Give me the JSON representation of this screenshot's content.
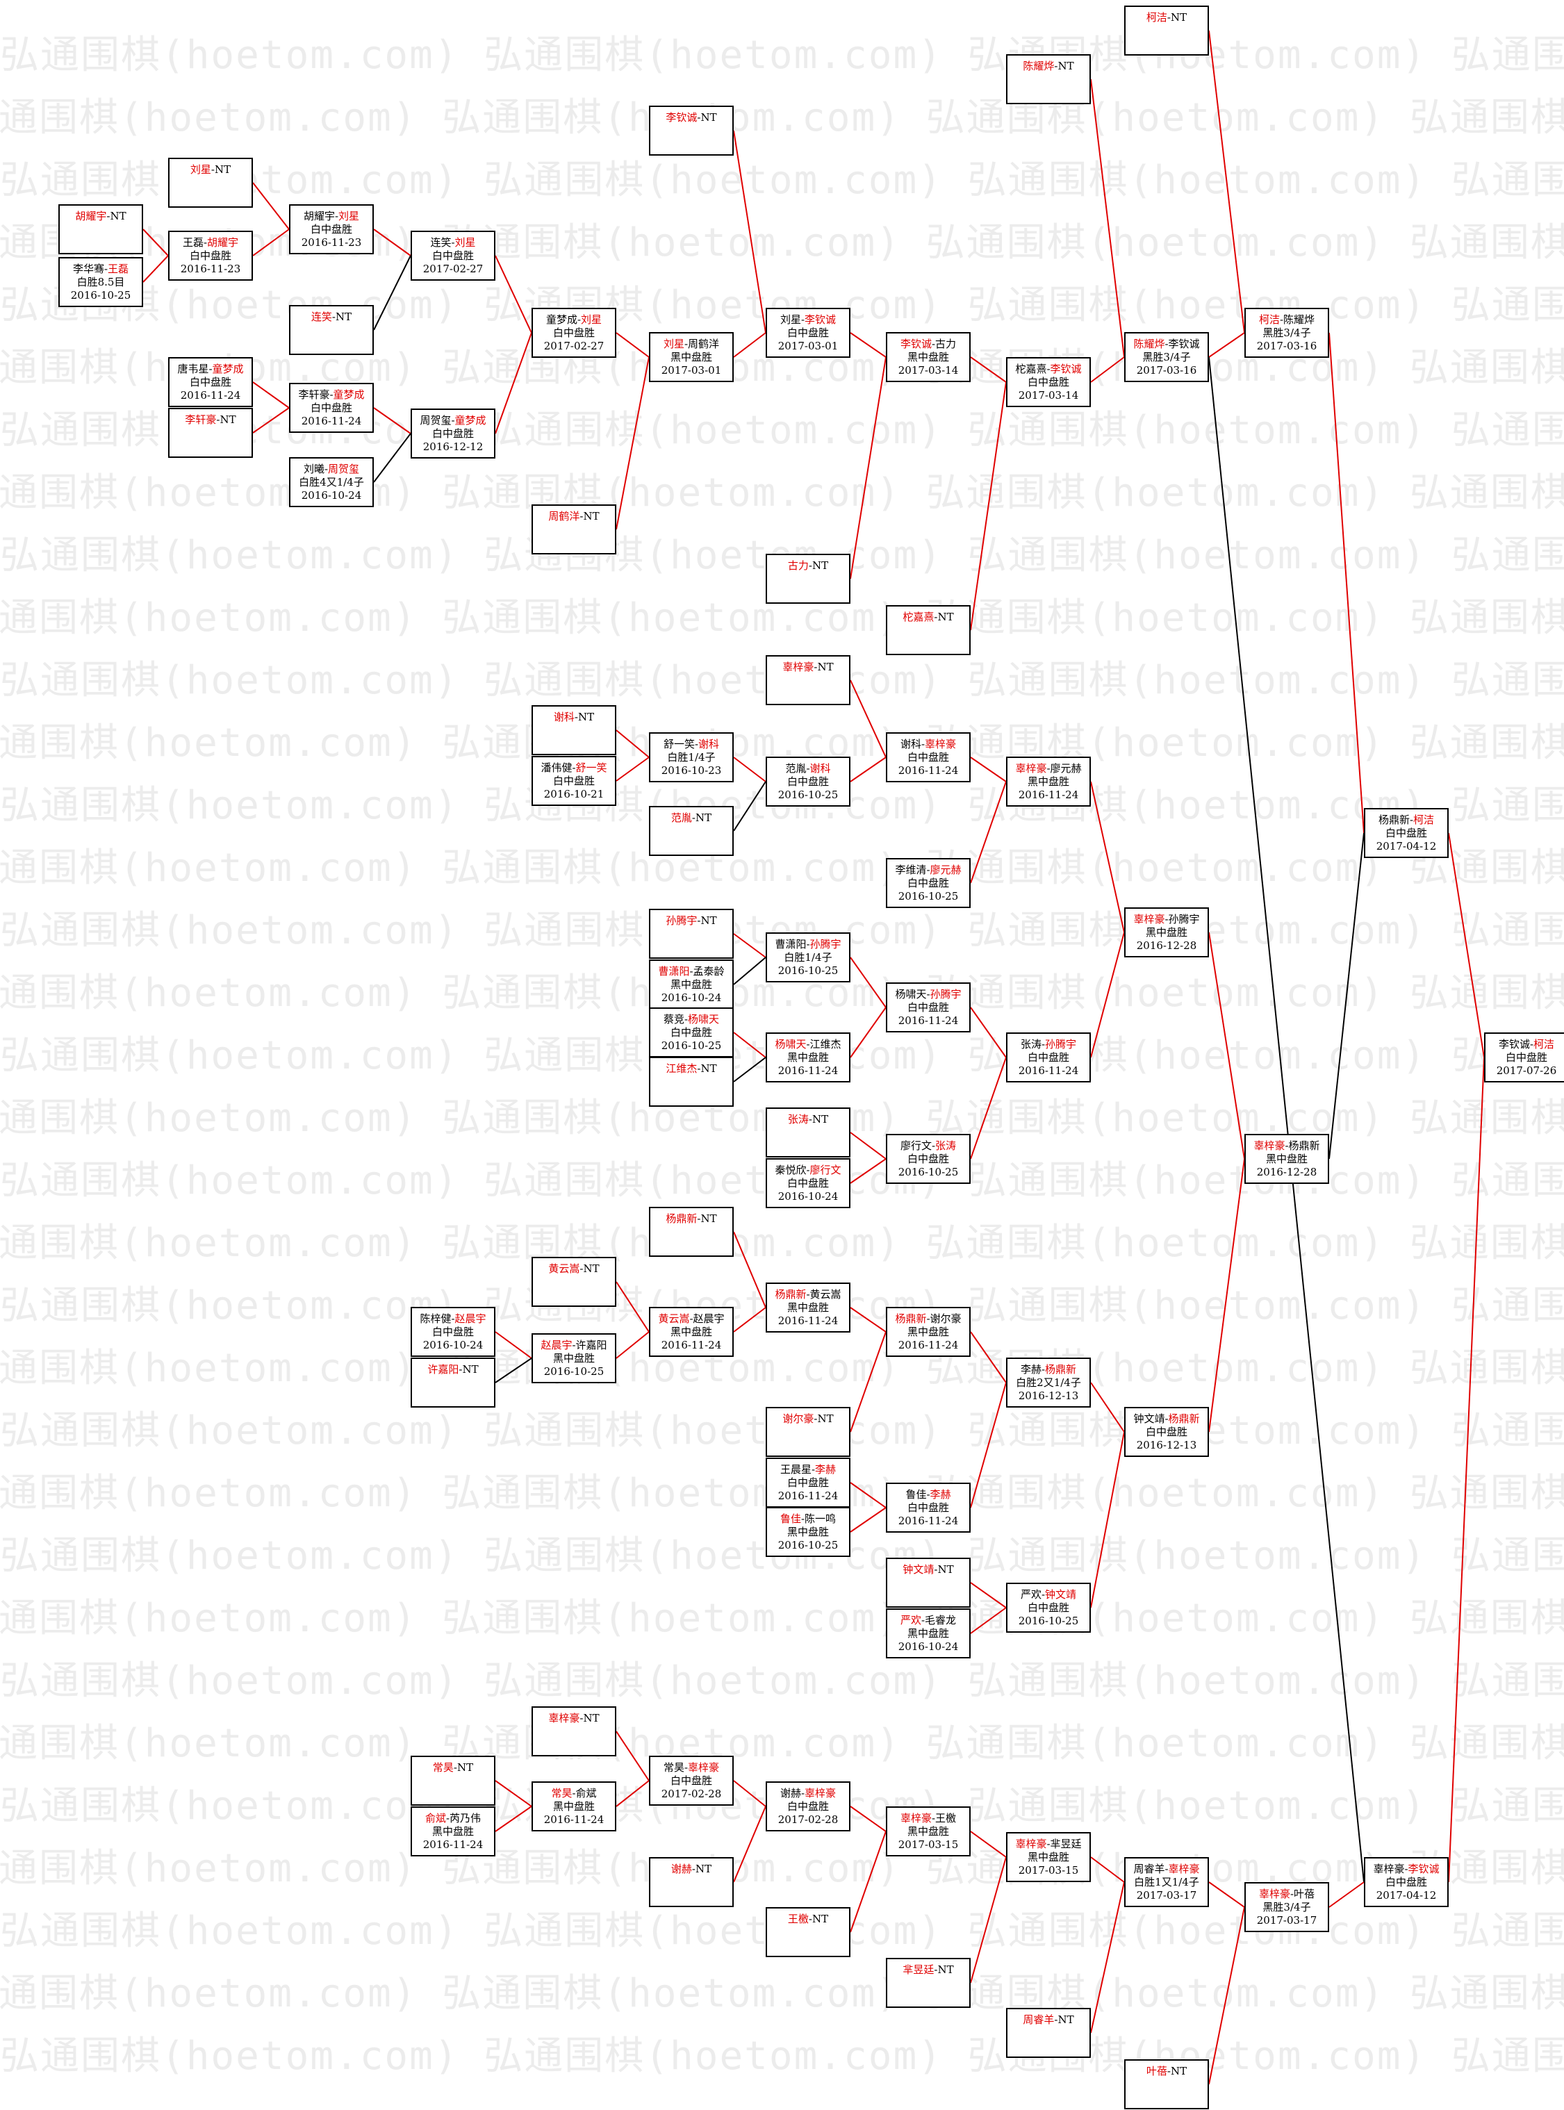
{
  "watermark": {
    "text": "弘通围棋(hoetom.com)"
  },
  "colors": {
    "winner": "#e00000",
    "line_red": "#e00000",
    "line_black": "#000000"
  },
  "nodes": [
    {
      "id": "n001",
      "p1": "胡耀宇",
      "p2": "NT",
      "win": 1,
      "res": "",
      "date": ""
    },
    {
      "id": "n002",
      "p1": "李华骞",
      "p2": "王磊",
      "win": 2,
      "res": "白胜8.5目",
      "date": "2016-10-25"
    },
    {
      "id": "n003",
      "p1": "刘星",
      "p2": "NT",
      "win": 1,
      "res": "",
      "date": ""
    },
    {
      "id": "n004",
      "p1": "王磊",
      "p2": "胡耀宇",
      "win": 2,
      "res": "白中盘胜",
      "date": "2016-11-23"
    },
    {
      "id": "n005",
      "p1": "胡耀宇",
      "p2": "刘星",
      "win": 2,
      "res": "白中盘胜",
      "date": "2016-11-23"
    },
    {
      "id": "n006",
      "p1": "连笑",
      "p2": "NT",
      "win": 1,
      "res": "",
      "date": ""
    },
    {
      "id": "n007",
      "p1": "连笑",
      "p2": "刘星",
      "win": 2,
      "res": "白中盘胜",
      "date": "2017-02-27"
    },
    {
      "id": "n008",
      "p1": "唐韦星",
      "p2": "童梦成",
      "win": 2,
      "res": "白中盘胜",
      "date": "2016-11-24"
    },
    {
      "id": "n009",
      "p1": "李轩豪",
      "p2": "NT",
      "win": 1,
      "res": "",
      "date": ""
    },
    {
      "id": "n010",
      "p1": "李轩豪",
      "p2": "童梦成",
      "win": 2,
      "res": "白中盘胜",
      "date": "2016-11-24"
    },
    {
      "id": "n011",
      "p1": "刘曦",
      "p2": "周贺玺",
      "win": 2,
      "res": "白胜4又1/4子",
      "date": "2016-10-24"
    },
    {
      "id": "n012",
      "p1": "周贺玺",
      "p2": "童梦成",
      "win": 2,
      "res": "白中盘胜",
      "date": "2016-12-12"
    },
    {
      "id": "n013",
      "p1": "童梦成",
      "p2": "刘星",
      "win": 2,
      "res": "白中盘胜",
      "date": "2017-02-27"
    },
    {
      "id": "n014",
      "p1": "周鹤洋",
      "p2": "NT",
      "win": 1,
      "res": "",
      "date": ""
    },
    {
      "id": "n015",
      "p1": "刘星",
      "p2": "周鹤洋",
      "win": 1,
      "res": "黑中盘胜",
      "date": "2017-03-01"
    },
    {
      "id": "n016",
      "p1": "李钦诚",
      "p2": "NT",
      "win": 1,
      "res": "",
      "date": ""
    },
    {
      "id": "n017",
      "p1": "刘星",
      "p2": "李钦诚",
      "win": 2,
      "res": "白中盘胜",
      "date": "2017-03-01"
    },
    {
      "id": "n018",
      "p1": "古力",
      "p2": "NT",
      "win": 1,
      "res": "",
      "date": ""
    },
    {
      "id": "n019",
      "p1": "李钦诚",
      "p2": "古力",
      "win": 1,
      "res": "黑中盘胜",
      "date": "2017-03-14"
    },
    {
      "id": "n020",
      "p1": "柁嘉熹",
      "p2": "NT",
      "win": 1,
      "res": "",
      "date": ""
    },
    {
      "id": "n021",
      "p1": "柁嘉熹",
      "p2": "李钦诚",
      "win": 2,
      "res": "白中盘胜",
      "date": "2017-03-14"
    },
    {
      "id": "n022",
      "p1": "陈耀烨",
      "p2": "NT",
      "win": 1,
      "res": "",
      "date": ""
    },
    {
      "id": "n023",
      "p1": "陈耀烨",
      "p2": "李钦诚",
      "win": 1,
      "res": "黑胜3/4子",
      "date": "2017-03-16"
    },
    {
      "id": "n024",
      "p1": "柯洁",
      "p2": "NT",
      "win": 1,
      "res": "",
      "date": ""
    },
    {
      "id": "n025",
      "p1": "柯洁",
      "p2": "陈耀烨",
      "win": 1,
      "res": "黑胜3/4子",
      "date": "2017-03-16"
    },
    {
      "id": "n026",
      "p1": "谢科",
      "p2": "NT",
      "win": 1,
      "res": "",
      "date": ""
    },
    {
      "id": "n027",
      "p1": "潘伟健",
      "p2": "舒一笑",
      "win": 2,
      "res": "白中盘胜",
      "date": "2016-10-21"
    },
    {
      "id": "n028",
      "p1": "舒一笑",
      "p2": "谢科",
      "win": 2,
      "res": "白胜1/4子",
      "date": "2016-10-23"
    },
    {
      "id": "n029",
      "p1": "范胤",
      "p2": "NT",
      "win": 1,
      "res": "",
      "date": ""
    },
    {
      "id": "n030",
      "p1": "范胤",
      "p2": "谢科",
      "win": 2,
      "res": "白中盘胜",
      "date": "2016-10-25"
    },
    {
      "id": "n031",
      "p1": "辜梓豪",
      "p2": "NT",
      "win": 1,
      "res": "",
      "date": ""
    },
    {
      "id": "n032",
      "p1": "谢科",
      "p2": "辜梓豪",
      "win": 2,
      "res": "白中盘胜",
      "date": "2016-11-24"
    },
    {
      "id": "n033",
      "p1": "李维清",
      "p2": "廖元赫",
      "win": 2,
      "res": "白中盘胜",
      "date": "2016-10-25"
    },
    {
      "id": "n034",
      "p1": "辜梓豪",
      "p2": "廖元赫",
      "win": 1,
      "res": "黑中盘胜",
      "date": "2016-11-24"
    },
    {
      "id": "n035",
      "p1": "孙腾宇",
      "p2": "NT",
      "win": 1,
      "res": "",
      "date": ""
    },
    {
      "id": "n036",
      "p1": "曹潇阳",
      "p2": "孟泰龄",
      "win": 1,
      "res": "黑中盘胜",
      "date": "2016-10-24"
    },
    {
      "id": "n037",
      "p1": "曹潇阳",
      "p2": "孙腾宇",
      "win": 2,
      "res": "白胜1/4子",
      "date": "2016-10-25"
    },
    {
      "id": "n038",
      "p1": "蔡竞",
      "p2": "杨啸天",
      "win": 2,
      "res": "白中盘胜",
      "date": "2016-10-25"
    },
    {
      "id": "n039",
      "p1": "江维杰",
      "p2": "NT",
      "win": 1,
      "res": "",
      "date": ""
    },
    {
      "id": "n040",
      "p1": "杨啸天",
      "p2": "江维杰",
      "win": 1,
      "res": "黑中盘胜",
      "date": "2016-11-24"
    },
    {
      "id": "n041",
      "p1": "杨啸天",
      "p2": "孙腾宇",
      "win": 2,
      "res": "白中盘胜",
      "date": "2016-11-24"
    },
    {
      "id": "n042",
      "p1": "张涛",
      "p2": "NT",
      "win": 1,
      "res": "",
      "date": ""
    },
    {
      "id": "n043",
      "p1": "秦悦欣",
      "p2": "廖行文",
      "win": 2,
      "res": "白中盘胜",
      "date": "2016-10-24"
    },
    {
      "id": "n044",
      "p1": "廖行文",
      "p2": "张涛",
      "win": 2,
      "res": "白中盘胜",
      "date": "2016-10-25"
    },
    {
      "id": "n045",
      "p1": "张涛",
      "p2": "孙腾宇",
      "win": 2,
      "res": "白中盘胜",
      "date": "2016-11-24"
    },
    {
      "id": "n046",
      "p1": "辜梓豪",
      "p2": "孙腾宇",
      "win": 1,
      "res": "黑中盘胜",
      "date": "2016-12-28"
    },
    {
      "id": "n047",
      "p1": "辜梓豪",
      "p2": "杨鼎新",
      "win": 1,
      "res": "黑中盘胜",
      "date": "2016-12-28"
    },
    {
      "id": "n048",
      "p1": "杨鼎新",
      "p2": "柯洁",
      "win": 2,
      "res": "白中盘胜",
      "date": "2017-04-12"
    },
    {
      "id": "n049",
      "p1": "李钦诚",
      "p2": "柯洁",
      "win": 2,
      "res": "白中盘胜",
      "date": "2017-07-26"
    },
    {
      "id": "n050",
      "p1": "杨鼎新",
      "p2": "NT",
      "win": 1,
      "res": "",
      "date": ""
    },
    {
      "id": "n051",
      "p1": "黄云嵩",
      "p2": "NT",
      "win": 1,
      "res": "",
      "date": ""
    },
    {
      "id": "n052",
      "p1": "陈梓健",
      "p2": "赵晨宇",
      "win": 2,
      "res": "白中盘胜",
      "date": "2016-10-24"
    },
    {
      "id": "n053",
      "p1": "许嘉阳",
      "p2": "NT",
      "win": 1,
      "res": "",
      "date": ""
    },
    {
      "id": "n054",
      "p1": "赵晨宇",
      "p2": "许嘉阳",
      "win": 1,
      "res": "黑中盘胜",
      "date": "2016-10-25"
    },
    {
      "id": "n055",
      "p1": "黄云嵩",
      "p2": "赵晨宇",
      "win": 1,
      "res": "黑中盘胜",
      "date": "2016-11-24"
    },
    {
      "id": "n056",
      "p1": "杨鼎新",
      "p2": "黄云嵩",
      "win": 1,
      "res": "黑中盘胜",
      "date": "2016-11-24"
    },
    {
      "id": "n057",
      "p1": "谢尔豪",
      "p2": "NT",
      "win": 1,
      "res": "",
      "date": ""
    },
    {
      "id": "n058",
      "p1": "杨鼎新",
      "p2": "谢尔豪",
      "win": 1,
      "res": "黑中盘胜",
      "date": "2016-11-24"
    },
    {
      "id": "n059",
      "p1": "王晨星",
      "p2": "李赫",
      "win": 2,
      "res": "白中盘胜",
      "date": "2016-11-24"
    },
    {
      "id": "n060",
      "p1": "鲁佳",
      "p2": "陈一鸣",
      "win": 1,
      "res": "黑中盘胜",
      "date": "2016-10-25"
    },
    {
      "id": "n061",
      "p1": "鲁佳",
      "p2": "李赫",
      "win": 2,
      "res": "白中盘胜",
      "date": "2016-11-24"
    },
    {
      "id": "n062",
      "p1": "李赫",
      "p2": "杨鼎新",
      "win": 2,
      "res": "白胜2又1/4子",
      "date": "2016-12-13"
    },
    {
      "id": "n063",
      "p1": "钟文靖",
      "p2": "NT",
      "win": 1,
      "res": "",
      "date": ""
    },
    {
      "id": "n064",
      "p1": "严欢",
      "p2": "毛睿龙",
      "win": 1,
      "res": "黑中盘胜",
      "date": "2016-10-24"
    },
    {
      "id": "n065",
      "p1": "严欢",
      "p2": "钟文靖",
      "win": 2,
      "res": "白中盘胜",
      "date": "2016-10-25"
    },
    {
      "id": "n066",
      "p1": "钟文靖",
      "p2": "杨鼎新",
      "win": 2,
      "res": "白中盘胜",
      "date": "2016-12-13"
    },
    {
      "id": "n067",
      "p1": "辜梓豪",
      "p2": "NT",
      "win": 1,
      "res": "",
      "date": ""
    },
    {
      "id": "n068",
      "p1": "常昊",
      "p2": "NT",
      "win": 1,
      "res": "",
      "date": ""
    },
    {
      "id": "n069",
      "p1": "俞斌",
      "p2": "芮乃伟",
      "win": 1,
      "res": "黑中盘胜",
      "date": "2016-11-24"
    },
    {
      "id": "n070",
      "p1": "常昊",
      "p2": "俞斌",
      "win": 1,
      "res": "黑中盘胜",
      "date": "2016-11-24"
    },
    {
      "id": "n071",
      "p1": "常昊",
      "p2": "辜梓豪",
      "win": 2,
      "res": "白中盘胜",
      "date": "2017-02-28"
    },
    {
      "id": "n072",
      "p1": "谢赫",
      "p2": "NT",
      "win": 1,
      "res": "",
      "date": ""
    },
    {
      "id": "n073",
      "p1": "谢赫",
      "p2": "辜梓豪",
      "win": 2,
      "res": "白中盘胜",
      "date": "2017-02-28"
    },
    {
      "id": "n074",
      "p1": "王檄",
      "p2": "NT",
      "win": 1,
      "res": "",
      "date": ""
    },
    {
      "id": "n075",
      "p1": "辜梓豪",
      "p2": "王檄",
      "win": 1,
      "res": "黑中盘胜",
      "date": "2017-03-15"
    },
    {
      "id": "n076",
      "p1": "芈昱廷",
      "p2": "NT",
      "win": 1,
      "res": "",
      "date": ""
    },
    {
      "id": "n077",
      "p1": "辜梓豪",
      "p2": "芈昱廷",
      "win": 1,
      "res": "黑中盘胜",
      "date": "2017-03-15"
    },
    {
      "id": "n078",
      "p1": "周睿羊",
      "p2": "NT",
      "win": 1,
      "res": "",
      "date": ""
    },
    {
      "id": "n079",
      "p1": "周睿羊",
      "p2": "辜梓豪",
      "win": 2,
      "res": "白胜1又1/4子",
      "date": "2017-03-17"
    },
    {
      "id": "n080",
      "p1": "叶蓓",
      "p2": "NT",
      "win": 1,
      "res": "",
      "date": ""
    },
    {
      "id": "n081",
      "p1": "辜梓豪",
      "p2": "叶蓓",
      "win": 1,
      "res": "黑胜3/4子",
      "date": "2017-03-17"
    },
    {
      "id": "n082",
      "p1": "辜梓豪",
      "p2": "李钦诚",
      "win": 2,
      "res": "白中盘胜",
      "date": "2017-04-12"
    }
  ]
}
